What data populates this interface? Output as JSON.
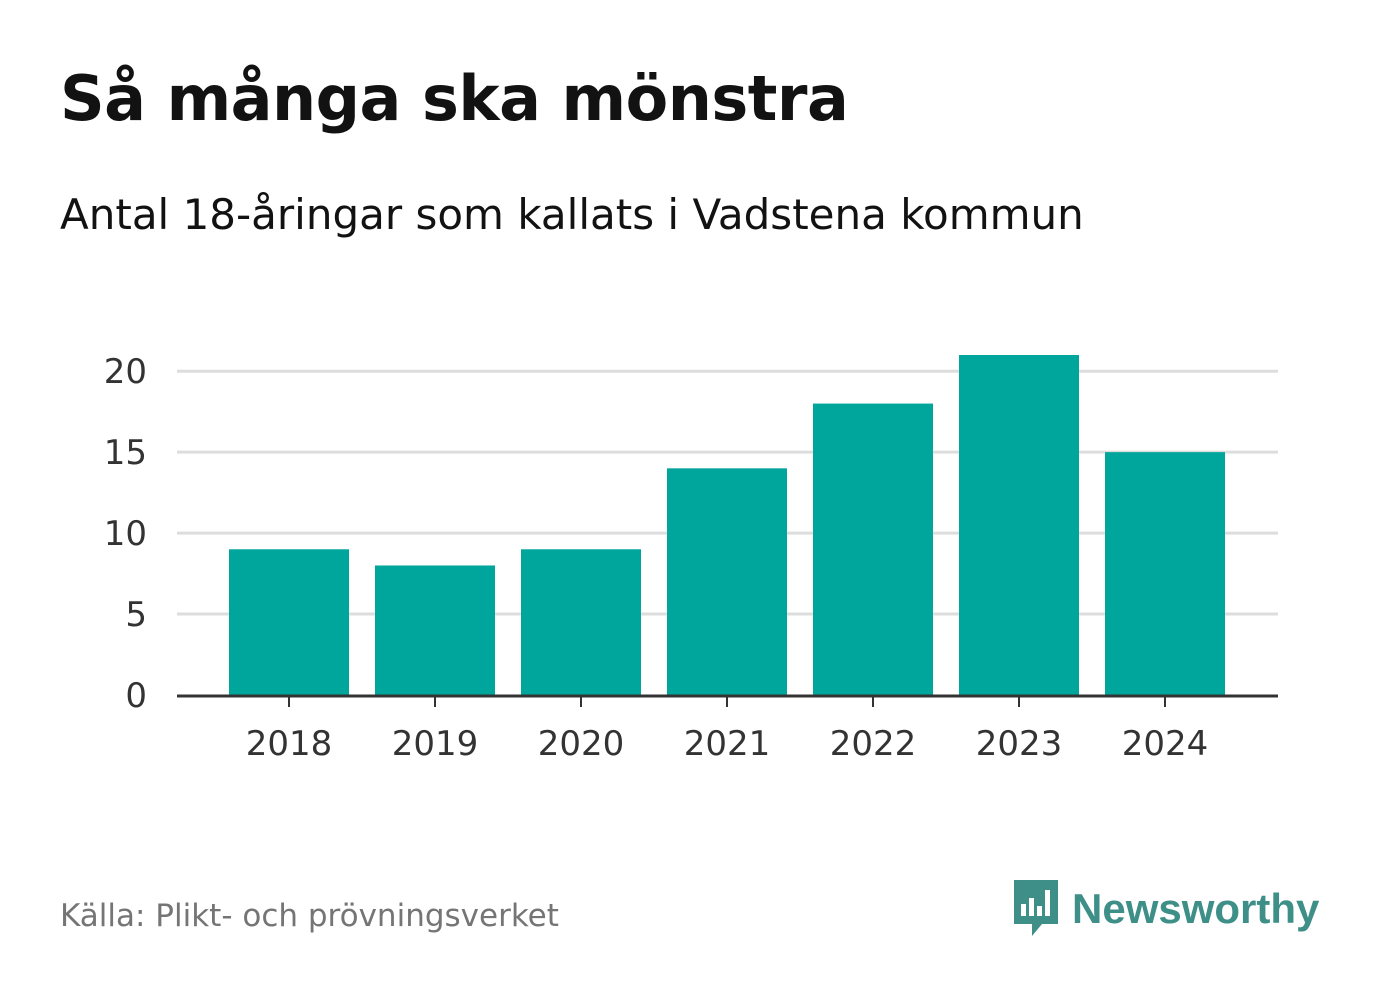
{
  "header": {
    "title": "Så många ska mönstra",
    "subtitle": "Antal 18-åringar som kallats i Vadstena kommun"
  },
  "footer": {
    "source": "Källa: Plikt- och prövningsverket",
    "brand": "Newsworthy",
    "brand_icon": "newsworthy-logo-icon"
  },
  "colors": {
    "bar": "#00a59b",
    "grid": "#dddddd",
    "axis": "#333333",
    "tick_text": "#333333",
    "brand": "#3d8f88"
  },
  "chart_data": {
    "type": "bar",
    "title": "Så många ska mönstra",
    "subtitle": "Antal 18-åringar som kallats i Vadstena kommun",
    "xlabel": "",
    "ylabel": "",
    "categories": [
      "2018",
      "2019",
      "2020",
      "2021",
      "2022",
      "2023",
      "2024"
    ],
    "values": [
      9,
      8,
      9,
      14,
      18,
      21,
      15
    ],
    "ylim": [
      0,
      21
    ],
    "yticks": [
      0,
      5,
      10,
      15,
      20
    ],
    "grid": true,
    "legend": "none"
  }
}
